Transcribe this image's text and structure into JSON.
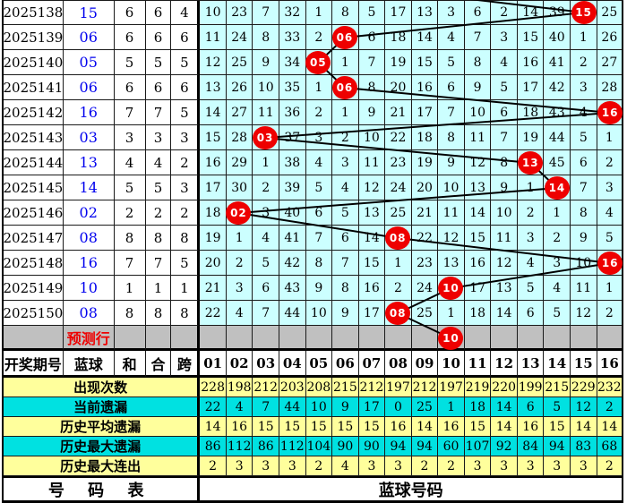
{
  "colors": {
    "grid_cell_bg": "#CCFFFF",
    "yellow_row": "#FFFF9C",
    "cyan_row": "#00E1E1",
    "prediction_row_bg": "#C0C0C0",
    "ball_circle": "#EE0000",
    "blue_number": "#0000EE",
    "trend_line": "#000000"
  },
  "table": {
    "header": {
      "period": "开奖期号",
      "blue": "蓝球",
      "sum": "和",
      "he": "合",
      "span": "跨",
      "balls": [
        "01",
        "02",
        "03",
        "04",
        "05",
        "06",
        "07",
        "08",
        "09",
        "10",
        "11",
        "12",
        "13",
        "14",
        "15",
        "16"
      ]
    },
    "rows": [
      {
        "period": "2025138",
        "blue": "15",
        "sum": "6",
        "he": "6",
        "span": "4",
        "ball": 15,
        "ball_label": "15",
        "cells": [
          "10",
          "23",
          "7",
          "32",
          "1",
          "8",
          "5",
          "17",
          "13",
          "3",
          "6",
          "2",
          "14",
          "39",
          "15",
          "25"
        ]
      },
      {
        "period": "2025139",
        "blue": "06",
        "sum": "6",
        "he": "6",
        "span": "6",
        "ball": 6,
        "ball_label": "06",
        "cells": [
          "11",
          "24",
          "8",
          "33",
          "2",
          "06",
          "6",
          "18",
          "14",
          "4",
          "7",
          "3",
          "15",
          "40",
          "1",
          "26"
        ]
      },
      {
        "period": "2025140",
        "blue": "05",
        "sum": "5",
        "he": "5",
        "span": "5",
        "ball": 5,
        "ball_label": "05",
        "cells": [
          "12",
          "25",
          "9",
          "34",
          "05",
          "1",
          "7",
          "19",
          "15",
          "5",
          "8",
          "4",
          "16",
          "41",
          "2",
          "27"
        ]
      },
      {
        "period": "2025141",
        "blue": "06",
        "sum": "6",
        "he": "6",
        "span": "6",
        "ball": 6,
        "ball_label": "06",
        "cells": [
          "13",
          "26",
          "10",
          "35",
          "1",
          "06",
          "8",
          "20",
          "16",
          "6",
          "9",
          "5",
          "17",
          "42",
          "3",
          "28"
        ]
      },
      {
        "period": "2025142",
        "blue": "16",
        "sum": "7",
        "he": "7",
        "span": "5",
        "ball": 16,
        "ball_label": "16",
        "cells": [
          "14",
          "27",
          "11",
          "36",
          "2",
          "1",
          "9",
          "21",
          "17",
          "7",
          "10",
          "6",
          "18",
          "43",
          "4",
          "16"
        ]
      },
      {
        "period": "2025143",
        "blue": "03",
        "sum": "3",
        "he": "3",
        "span": "3",
        "ball": 3,
        "ball_label": "03",
        "cells": [
          "15",
          "28",
          "03",
          "37",
          "3",
          "2",
          "10",
          "22",
          "18",
          "8",
          "11",
          "7",
          "19",
          "44",
          "5",
          "1"
        ]
      },
      {
        "period": "2025144",
        "blue": "13",
        "sum": "4",
        "he": "4",
        "span": "2",
        "ball": 13,
        "ball_label": "13",
        "cells": [
          "16",
          "29",
          "1",
          "38",
          "4",
          "3",
          "11",
          "23",
          "19",
          "9",
          "12",
          "8",
          "13",
          "45",
          "6",
          "2"
        ]
      },
      {
        "period": "2025145",
        "blue": "14",
        "sum": "5",
        "he": "5",
        "span": "3",
        "ball": 14,
        "ball_label": "14",
        "cells": [
          "17",
          "30",
          "2",
          "39",
          "5",
          "4",
          "12",
          "24",
          "20",
          "10",
          "13",
          "9",
          "1",
          "14",
          "7",
          "3"
        ]
      },
      {
        "period": "2025146",
        "blue": "02",
        "sum": "2",
        "he": "2",
        "span": "2",
        "ball": 2,
        "ball_label": "02",
        "cells": [
          "18",
          "02",
          "3",
          "40",
          "6",
          "5",
          "13",
          "25",
          "21",
          "11",
          "14",
          "10",
          "2",
          "1",
          "8",
          "4"
        ]
      },
      {
        "period": "2025147",
        "blue": "08",
        "sum": "8",
        "he": "8",
        "span": "8",
        "ball": 8,
        "ball_label": "08",
        "cells": [
          "19",
          "1",
          "4",
          "41",
          "7",
          "6",
          "14",
          "08",
          "22",
          "12",
          "15",
          "11",
          "3",
          "2",
          "9",
          "5"
        ]
      },
      {
        "period": "2025148",
        "blue": "16",
        "sum": "7",
        "he": "7",
        "span": "5",
        "ball": 16,
        "ball_label": "16",
        "cells": [
          "20",
          "2",
          "5",
          "42",
          "8",
          "7",
          "15",
          "1",
          "23",
          "13",
          "16",
          "12",
          "4",
          "3",
          "10",
          "16"
        ]
      },
      {
        "period": "2025149",
        "blue": "10",
        "sum": "1",
        "he": "1",
        "span": "1",
        "ball": 10,
        "ball_label": "10",
        "cells": [
          "21",
          "3",
          "6",
          "43",
          "9",
          "8",
          "16",
          "2",
          "24",
          "10",
          "17",
          "13",
          "5",
          "4",
          "11",
          "1"
        ]
      },
      {
        "period": "2025150",
        "blue": "08",
        "sum": "8",
        "he": "8",
        "span": "8",
        "ball": 8,
        "ball_label": "08",
        "cells": [
          "22",
          "4",
          "7",
          "44",
          "10",
          "9",
          "17",
          "08",
          "25",
          "1",
          "18",
          "14",
          "6",
          "5",
          "12",
          "2"
        ]
      }
    ],
    "prediction": {
      "label": "预测行",
      "ball": 10,
      "ball_label": "10"
    },
    "stats": [
      {
        "label": "出现次数",
        "bg": "yellow",
        "values": [
          228,
          198,
          212,
          203,
          208,
          215,
          212,
          197,
          212,
          197,
          219,
          220,
          199,
          215,
          229,
          232
        ]
      },
      {
        "label": "当前遗漏",
        "bg": "cyan",
        "values": [
          22,
          4,
          7,
          44,
          10,
          9,
          17,
          0,
          25,
          1,
          18,
          14,
          6,
          5,
          12,
          2
        ]
      },
      {
        "label": "历史平均遗漏",
        "bg": "yellow",
        "values": [
          14,
          16,
          15,
          15,
          15,
          15,
          15,
          16,
          14,
          16,
          15,
          14,
          16,
          15,
          14,
          14
        ]
      },
      {
        "label": "历史最大遗漏",
        "bg": "cyan",
        "values": [
          86,
          112,
          86,
          112,
          104,
          90,
          90,
          94,
          94,
          60,
          107,
          92,
          84,
          94,
          83,
          68
        ]
      },
      {
        "label": "历史最大连出",
        "bg": "yellow",
        "values": [
          2,
          3,
          3,
          3,
          2,
          4,
          3,
          3,
          2,
          2,
          3,
          3,
          3,
          3,
          3,
          2
        ]
      }
    ],
    "footer": {
      "left": "号 码 表",
      "right": "蓝球号码"
    },
    "incoming_line_from_column": 7
  },
  "chart_data": {
    "type": "table",
    "x": [
      "2025138",
      "2025139",
      "2025140",
      "2025141",
      "2025142",
      "2025143",
      "2025144",
      "2025145",
      "2025146",
      "2025147",
      "2025148",
      "2025149",
      "2025150"
    ],
    "series": [
      {
        "name": "蓝球",
        "values": [
          15,
          6,
          5,
          6,
          16,
          3,
          13,
          14,
          2,
          8,
          16,
          10,
          8
        ]
      },
      {
        "name": "和",
        "values": [
          6,
          6,
          5,
          6,
          7,
          3,
          4,
          5,
          2,
          8,
          7,
          1,
          8
        ]
      },
      {
        "name": "合",
        "values": [
          6,
          6,
          5,
          6,
          7,
          3,
          4,
          5,
          2,
          8,
          7,
          1,
          8
        ]
      },
      {
        "name": "跨",
        "values": [
          4,
          6,
          5,
          6,
          5,
          3,
          2,
          3,
          2,
          8,
          5,
          1,
          8
        ]
      }
    ],
    "prediction_ball": 10,
    "ball_columns": [
      "01",
      "02",
      "03",
      "04",
      "05",
      "06",
      "07",
      "08",
      "09",
      "10",
      "11",
      "12",
      "13",
      "14",
      "15",
      "16"
    ],
    "stats": {
      "出现次数": [
        228,
        198,
        212,
        203,
        208,
        215,
        212,
        197,
        212,
        197,
        219,
        220,
        199,
        215,
        229,
        232
      ],
      "当前遗漏": [
        22,
        4,
        7,
        44,
        10,
        9,
        17,
        0,
        25,
        1,
        18,
        14,
        6,
        5,
        12,
        2
      ],
      "历史平均遗漏": [
        14,
        16,
        15,
        15,
        15,
        15,
        15,
        16,
        14,
        16,
        15,
        14,
        16,
        15,
        14,
        14
      ],
      "历史最大遗漏": [
        86,
        112,
        86,
        112,
        104,
        90,
        90,
        94,
        94,
        60,
        107,
        92,
        84,
        94,
        83,
        68
      ],
      "历史最大连出": [
        2,
        3,
        3,
        3,
        2,
        4,
        3,
        3,
        2,
        2,
        3,
        3,
        3,
        3,
        3,
        2
      ]
    },
    "footer_labels": [
      "号 码 表",
      "蓝球号码"
    ],
    "legend_position": "none",
    "grid": true
  }
}
